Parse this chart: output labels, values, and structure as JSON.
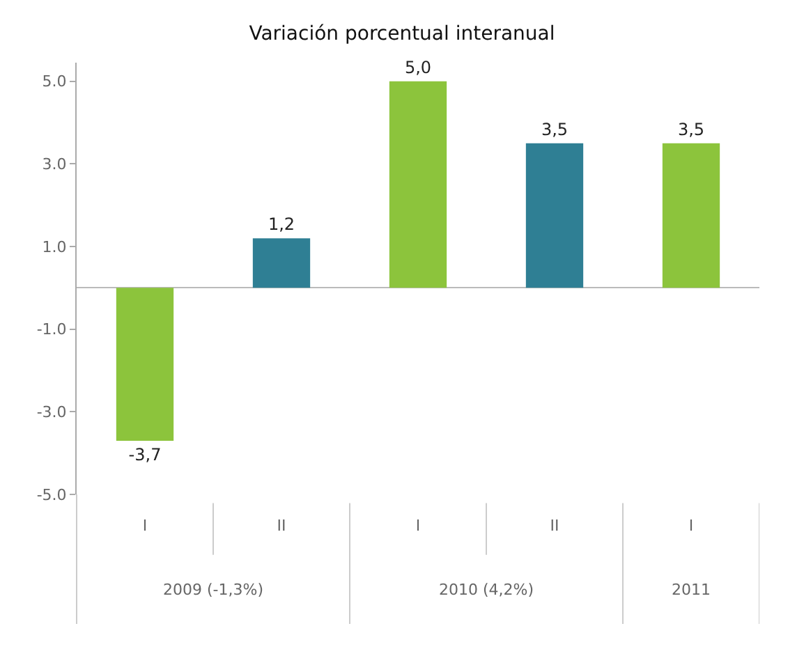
{
  "chart_data": {
    "type": "bar",
    "title": "Variación porcentual interanual",
    "categories": [
      "I",
      "II",
      "I",
      "II",
      "I"
    ],
    "values": [
      -3.7,
      1.2,
      5.0,
      3.5,
      3.5
    ],
    "colors": [
      "#8cc43c",
      "#2f7f94",
      "#8cc43c",
      "#2f7f94",
      "#8cc43c"
    ],
    "value_labels": [
      "-3,7",
      "1,2",
      "5,0",
      "3,5",
      "3,5"
    ],
    "annotations": [
      "2009 (-1,3%)",
      "2010 (4,2%)",
      "2011"
    ],
    "ylim": [
      -5.0,
      5.45
    ],
    "yticks": [
      {
        "value": -5.0,
        "label": "-5.0"
      },
      {
        "value": -3.0,
        "label": "-3.0"
      },
      {
        "value": -1.0,
        "label": "-1.0"
      },
      {
        "value": 1.0,
        "label": "1.0"
      },
      {
        "value": 3.0,
        "label": "3.0"
      },
      {
        "value": 5.0,
        "label": "5.0"
      }
    ],
    "legend": false
  }
}
